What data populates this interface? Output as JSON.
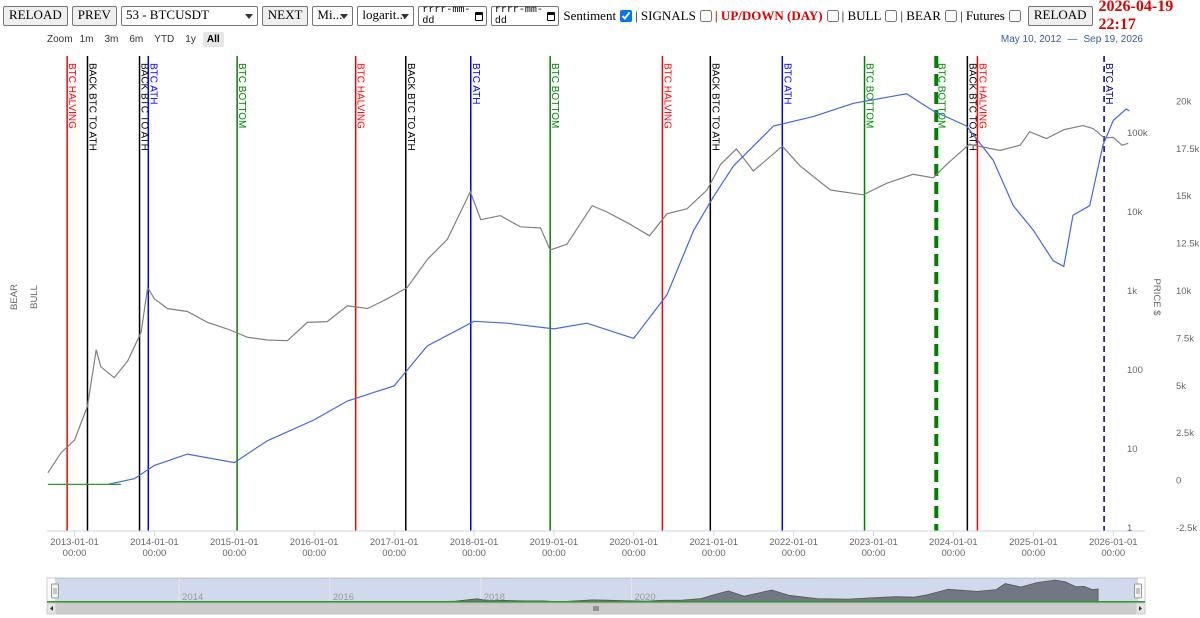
{
  "toolbar": {
    "reload": "RELOAD",
    "prev": "PREV",
    "symbol": "53 - BTCUSDT",
    "next": "NEXT",
    "interval": "Mi...",
    "scale": "logarit...",
    "date_from": "rrrr-mm-dd",
    "date_to": "rrrr-mm-dd",
    "options": [
      {
        "label": "Sentiment",
        "checked": true
      },
      {
        "label": "| SIGNALS",
        "checked": false
      },
      {
        "label": "| UP/DOWN (DAY)",
        "checked": false,
        "color": "#e00000"
      },
      {
        "label": "| BULL",
        "checked": false
      },
      {
        "label": "| BEAR",
        "checked": false
      },
      {
        "label": "| Futures",
        "checked": false
      }
    ],
    "reload2": "RELOAD",
    "timestamp": "2026-04-19 22:17"
  },
  "zoom": {
    "label": "Zoom",
    "buttons": [
      "1m",
      "3m",
      "6m",
      "YTD",
      "1y",
      "All"
    ],
    "selected": 5,
    "range_from": "May 10, 2012",
    "range_sep": "—",
    "range_to": "Sep 19, 2026"
  },
  "chart_data": {
    "type": "line",
    "xlim": [
      "2012-08-28",
      "2026-05-26"
    ],
    "xticks": [
      {
        "value": "2013-01-01",
        "label": "2013-01-01\n00:00"
      },
      {
        "value": "2014-01-01",
        "label": "2014-01-01\n00:00"
      },
      {
        "value": "2015-01-01",
        "label": "2015-01-01\n00:00"
      },
      {
        "value": "2016-01-01",
        "label": "2016-01-01\n00:00"
      },
      {
        "value": "2017-01-01",
        "label": "2017-01-01\n00:00"
      },
      {
        "value": "2018-01-01",
        "label": "2018-01-01\n00:00"
      },
      {
        "value": "2019-01-01",
        "label": "2019-01-01\n00:00"
      },
      {
        "value": "2020-01-01",
        "label": "2020-01-01\n00:00"
      },
      {
        "value": "2021-01-01",
        "label": "2021-01-01\n00:00"
      },
      {
        "value": "2022-01-01",
        "label": "2022-01-01\n00:00"
      },
      {
        "value": "2023-01-01",
        "label": "2023-01-01\n00:00"
      },
      {
        "value": "2024-01-01",
        "label": "2024-01-01\n00:00"
      },
      {
        "value": "2025-01-01",
        "label": "2025-01-01\n00:00"
      },
      {
        "value": "2026-01-01",
        "label": "2026-01-01\n00:00"
      }
    ],
    "yscale": "log",
    "ylim": [
      1,
      1000000
    ],
    "yticks": [
      1,
      10,
      100,
      {
        "value": 1000,
        "label": "1k"
      },
      {
        "value": 10000,
        "label": "10k"
      },
      {
        "value": 100000,
        "label": "100k"
      }
    ],
    "y2lim": [
      -2500,
      22500
    ],
    "y2ticks": [
      {
        "value": 20000,
        "label": "20k"
      },
      {
        "value": 17500,
        "label": "17.5k"
      },
      {
        "value": 15000,
        "label": "15k"
      },
      {
        "value": 12500,
        "label": "12.5k"
      },
      {
        "value": 10000,
        "label": "10k"
      },
      {
        "value": 7500,
        "label": "7.5k"
      },
      {
        "value": 5000,
        "label": "5k"
      },
      {
        "value": 2500,
        "label": "2.5k"
      },
      0,
      {
        "value": -2500,
        "label": "-2.5k"
      }
    ],
    "y2_label": "PRICE $",
    "left_labels": [
      "BEAR",
      "BULL"
    ],
    "series": [
      {
        "color": "#808080",
        "axis": "y",
        "x": [
          "2012-09-01",
          "2012-11-01",
          "2013-01-01",
          "2013-03-01",
          "2013-04-10",
          "2013-05-01",
          "2013-07-01",
          "2013-09-01",
          "2013-11-01",
          "2013-12-01",
          "2014-01-01",
          "2014-03-01",
          "2014-06-01",
          "2014-09-01",
          "2014-12-01",
          "2015-03-01",
          "2015-06-01",
          "2015-09-01",
          "2015-12-01",
          "2016-03-01",
          "2016-06-01",
          "2016-09-01",
          "2016-12-01",
          "2017-03-01",
          "2017-06-01",
          "2017-09-01",
          "2017-12-15",
          "2018-02-01",
          "2018-05-01",
          "2018-08-01",
          "2018-11-01",
          "2018-12-15",
          "2019-03-01",
          "2019-06-25",
          "2019-09-01",
          "2019-12-15",
          "2020-03-13",
          "2020-06-01",
          "2020-09-01",
          "2020-12-01",
          "2021-02-01",
          "2021-04-14",
          "2021-07-01",
          "2021-11-10",
          "2022-02-01",
          "2022-06-18",
          "2022-11-15",
          "2023-03-01",
          "2023-07-01",
          "2023-10-01",
          "2023-12-01",
          "2024-03-14",
          "2024-08-01",
          "2024-11-01",
          "2024-12-15",
          "2025-03-01",
          "2025-05-20",
          "2025-08-14",
          "2025-10-01",
          "2025-11-20",
          "2026-01-01",
          "2026-02-10",
          "2026-03-10"
        ],
        "values": [
          5,
          9,
          13,
          35,
          180,
          110,
          80,
          130,
          300,
          1100,
          800,
          600,
          550,
          400,
          330,
          260,
          240,
          235,
          400,
          410,
          650,
          600,
          800,
          1100,
          2500,
          4500,
          18000,
          8000,
          9000,
          6500,
          6300,
          3300,
          3900,
          12000,
          10000,
          7000,
          5000,
          9500,
          11000,
          19000,
          40000,
          63000,
          33000,
          68000,
          38000,
          19000,
          16500,
          23000,
          30000,
          27000,
          40000,
          72000,
          60000,
          70000,
          104000,
          85000,
          110000,
          124000,
          114000,
          87000,
          88000,
          70000,
          74000
        ]
      },
      {
        "color": "#4169e1",
        "axis": "y2",
        "x": [
          "2013-06-01",
          "2013-10-01",
          "2014-01-01",
          "2014-06-01",
          "2015-01-01",
          "2015-06-01",
          "2016-01-01",
          "2016-06-01",
          "2017-01-01",
          "2017-06-01",
          "2018-01-01",
          "2018-06-01",
          "2019-01-01",
          "2019-06-01",
          "2020-01-01",
          "2020-06-01",
          "2020-10-01",
          "2021-01-01",
          "2021-04-01",
          "2021-10-01",
          "2022-04-01",
          "2022-10-01",
          "2023-06-01",
          "2023-10-01",
          "2024-03-01",
          "2024-07-01",
          "2024-10-01",
          "2025-01-01",
          "2025-04-01",
          "2025-05-20",
          "2025-07-01",
          "2025-09-15",
          "2025-11-15",
          "2026-01-01",
          "2026-03-01",
          "2026-03-15"
        ],
        "values": [
          -200,
          100,
          800,
          1400,
          950,
          2100,
          3200,
          4200,
          5000,
          7100,
          8400,
          8300,
          8000,
          8300,
          7500,
          9800,
          13200,
          15000,
          16600,
          18700,
          19200,
          19900,
          20400,
          19500,
          18700,
          16900,
          14500,
          13200,
          11600,
          11300,
          14000,
          14500,
          17700,
          19000,
          19600,
          19500
        ]
      },
      {
        "color": "#2e9a2e",
        "axis": "y2",
        "x": [
          "2012-09-01",
          "2013-08-01"
        ],
        "values": [
          -200,
          -200
        ]
      }
    ],
    "events": [
      {
        "label": "BTC HALVING",
        "x": "2012-11-28",
        "color": "#ff0000"
      },
      {
        "label": "BACK BTC TO ATH",
        "x": "2013-03-01",
        "color": "#000000"
      },
      {
        "label": "BACK BTC TO ATH",
        "x": "2013-10-25",
        "color": "#000000"
      },
      {
        "label": "BTC ATH",
        "x": "2013-12-04",
        "color": "#0000ff"
      },
      {
        "label": "BTC BOTTOM",
        "x": "2015-01-14",
        "color": "#008000"
      },
      {
        "label": "BTC HALVING",
        "x": "2016-07-09",
        "color": "#ff0000"
      },
      {
        "label": "BACK BTC TO ATH",
        "x": "2017-02-23",
        "color": "#000000"
      },
      {
        "label": "BTC ATH",
        "x": "2017-12-17",
        "color": "#0000ff"
      },
      {
        "label": "BTC BOTTOM",
        "x": "2018-12-15",
        "color": "#008000"
      },
      {
        "label": "BTC HALVING",
        "x": "2020-05-11",
        "color": "#ff0000"
      },
      {
        "label": "BACK BTC TO ATH",
        "x": "2020-12-16",
        "color": "#000000"
      },
      {
        "label": "BTC ATH",
        "x": "2021-11-10",
        "color": "#0000ff"
      },
      {
        "label": "BTC BOTTOM",
        "x": "2022-11-21",
        "color": "#008000"
      },
      {
        "label": "BTC BOTTOM",
        "x": "2023-10-15",
        "color": "#008000",
        "line_style": "thick-dashed"
      },
      {
        "label": "BACK BTC TO ATH",
        "x": "2024-03-05",
        "color": "#000000"
      },
      {
        "label": "BTC HALVING",
        "x": "2024-04-20",
        "color": "#ff0000"
      },
      {
        "label": "BTC ATH",
        "x": "2025-11-20",
        "color": "#00008b",
        "line_style": "dashed"
      }
    ]
  },
  "navigator": {
    "xlim": [
      "2012-05-10",
      "2026-09-19"
    ],
    "ylim": [
      0,
      130000
    ],
    "xticks": [
      {
        "value": "2014-01-01",
        "label": "2014"
      },
      {
        "value": "2016-01-01",
        "label": "2016"
      },
      {
        "value": "2018-01-01",
        "label": "2018"
      },
      {
        "value": "2020-01-01",
        "label": "2020"
      }
    ]
  }
}
